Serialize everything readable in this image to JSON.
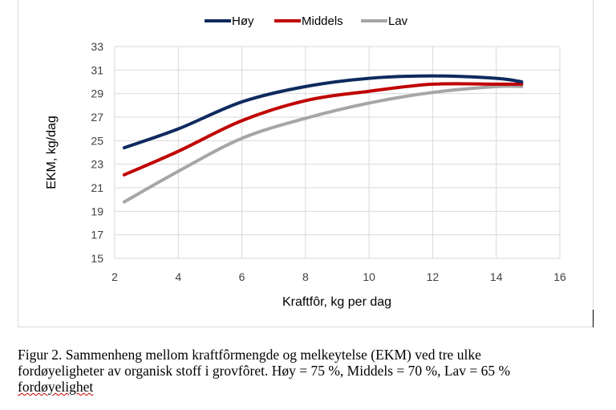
{
  "chart_data": {
    "type": "line",
    "title": "",
    "xlabel": "Kraftfôr, kg per dag",
    "ylabel": "EKM, kg/dag",
    "xlim": [
      2,
      16
    ],
    "ylim": [
      15,
      33
    ],
    "xticks": [
      2,
      4,
      6,
      8,
      10,
      12,
      14,
      16
    ],
    "yticks": [
      15,
      17,
      19,
      21,
      23,
      25,
      27,
      29,
      31,
      33
    ],
    "grid": true,
    "legend_position": "top-center",
    "x": [
      2.3,
      4,
      6,
      8,
      10,
      12,
      14,
      14.8
    ],
    "series": [
      {
        "name": "Høy",
        "color": "#0e2a5e",
        "values": [
          24.4,
          26.0,
          28.3,
          29.6,
          30.3,
          30.5,
          30.3,
          30.0
        ]
      },
      {
        "name": "Middels",
        "color": "#c00000",
        "values": [
          22.1,
          24.1,
          26.7,
          28.4,
          29.2,
          29.8,
          29.8,
          29.8
        ]
      },
      {
        "name": "Lav",
        "color": "#a6a6a6",
        "values": [
          19.8,
          22.4,
          25.2,
          26.9,
          28.2,
          29.1,
          29.6,
          29.6
        ]
      }
    ]
  },
  "caption": {
    "line1": "Figur 2. Sammenheng mellom kraftfôrmengde og melkeytelse (EKM) ved tre ulke",
    "line2": "fordøyeligheter av organisk stoff i grovfôret. Høy = 75 %, Middels = 70 %, Lav = 65 %",
    "line3": "fordøyelighet"
  }
}
